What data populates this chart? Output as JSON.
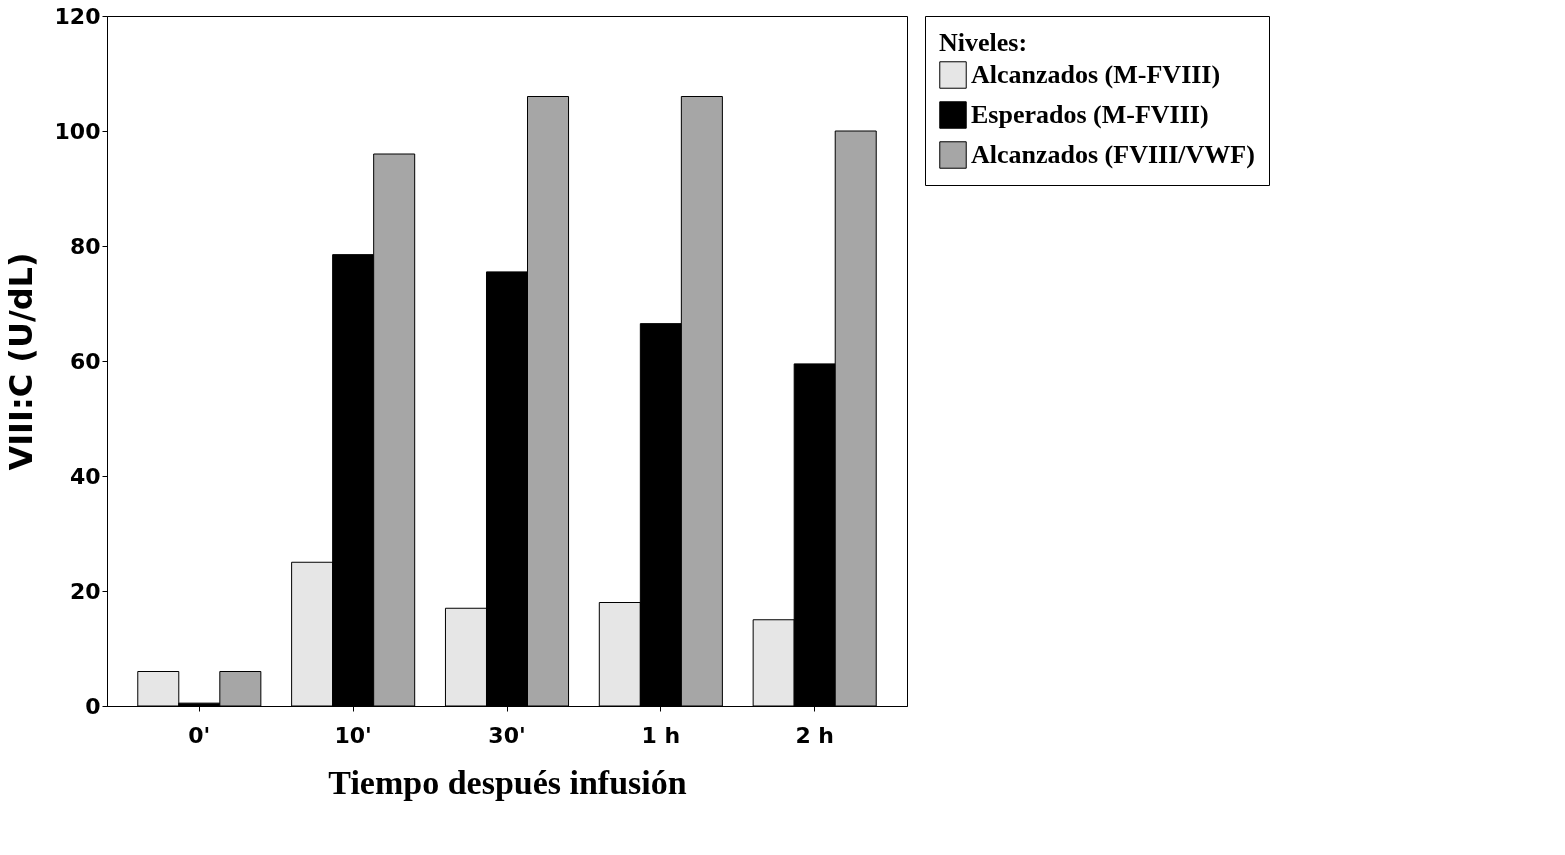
{
  "chart_data": {
    "type": "bar",
    "xlabel": "Tiempo después infusión",
    "ylabel": "VIII:C  (U/dL)",
    "legend_title": "Niveles:",
    "categories": [
      "0'",
      "10'",
      "30'",
      "1 h",
      "2 h"
    ],
    "series": [
      {
        "name": "Alcanzados  (M-FVIII)",
        "color": "#e6e6e6",
        "values": [
          6,
          25,
          17,
          18,
          15
        ]
      },
      {
        "name": "Esperados  (M-FVIII)",
        "color": "#000000",
        "values": [
          0.5,
          78.5,
          75.5,
          66.5,
          59.5
        ]
      },
      {
        "name": "Alcanzados (FVIII/VWF)",
        "color": "#a6a6a6",
        "values": [
          6,
          96,
          106,
          106,
          100
        ]
      }
    ],
    "ylim": [
      0,
      120
    ],
    "yticks": [
      0,
      20,
      40,
      60,
      80,
      100,
      120
    ],
    "grid": false,
    "legend": "right"
  }
}
